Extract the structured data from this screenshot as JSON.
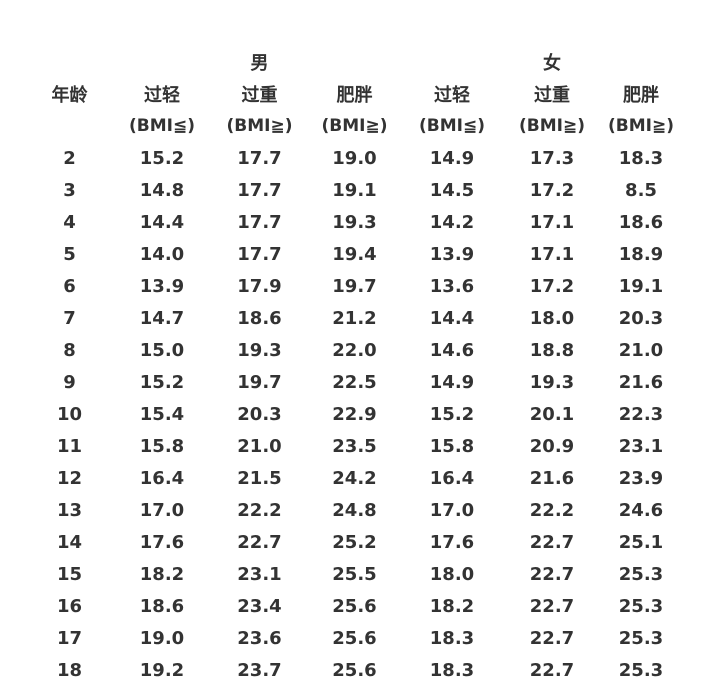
{
  "table": {
    "groups": {
      "male": "男",
      "female": "女"
    },
    "age_header": "年龄",
    "columns": [
      {
        "label": "过轻",
        "unit": "(BMI≦)"
      },
      {
        "label": "过重",
        "unit": "(BMI≧)"
      },
      {
        "label": "肥胖",
        "unit": "(BMI≧)"
      },
      {
        "label": "过轻",
        "unit": "(BMI≦)"
      },
      {
        "label": "过重",
        "unit": "(BMI≧)"
      },
      {
        "label": "肥胖",
        "unit": "(BMI≧)"
      }
    ],
    "rows": [
      [
        "2",
        "15.2",
        "17.7",
        "19.0",
        "14.9",
        "17.3",
        "18.3"
      ],
      [
        "3",
        "14.8",
        "17.7",
        "19.1",
        "14.5",
        "17.2",
        "8.5"
      ],
      [
        "4",
        "14.4",
        "17.7",
        "19.3",
        "14.2",
        "17.1",
        "18.6"
      ],
      [
        "5",
        "14.0",
        "17.7",
        "19.4",
        "13.9",
        "17.1",
        "18.9"
      ],
      [
        "6",
        "13.9",
        "17.9",
        "19.7",
        "13.6",
        "17.2",
        "19.1"
      ],
      [
        "7",
        "14.7",
        "18.6",
        "21.2",
        "14.4",
        "18.0",
        "20.3"
      ],
      [
        "8",
        "15.0",
        "19.3",
        "22.0",
        "14.6",
        "18.8",
        "21.0"
      ],
      [
        "9",
        "15.2",
        "19.7",
        "22.5",
        "14.9",
        "19.3",
        "21.6"
      ],
      [
        "10",
        "15.4",
        "20.3",
        "22.9",
        "15.2",
        "20.1",
        "22.3"
      ],
      [
        "11",
        "15.8",
        "21.0",
        "23.5",
        "15.8",
        "20.9",
        "23.1"
      ],
      [
        "12",
        "16.4",
        "21.5",
        "24.2",
        "16.4",
        "21.6",
        "23.9"
      ],
      [
        "13",
        "17.0",
        "22.2",
        "24.8",
        "17.0",
        "22.2",
        "24.6"
      ],
      [
        "14",
        "17.6",
        "22.7",
        "25.2",
        "17.6",
        "22.7",
        "25.1"
      ],
      [
        "15",
        "18.2",
        "23.1",
        "25.5",
        "18.0",
        "22.7",
        "25.3"
      ],
      [
        "16",
        "18.6",
        "23.4",
        "25.6",
        "18.2",
        "22.7",
        "25.3"
      ],
      [
        "17",
        "19.0",
        "23.6",
        "25.6",
        "18.3",
        "22.7",
        "25.3"
      ],
      [
        "18",
        "19.2",
        "23.7",
        "25.6",
        "18.3",
        "22.7",
        "25.3"
      ]
    ]
  }
}
